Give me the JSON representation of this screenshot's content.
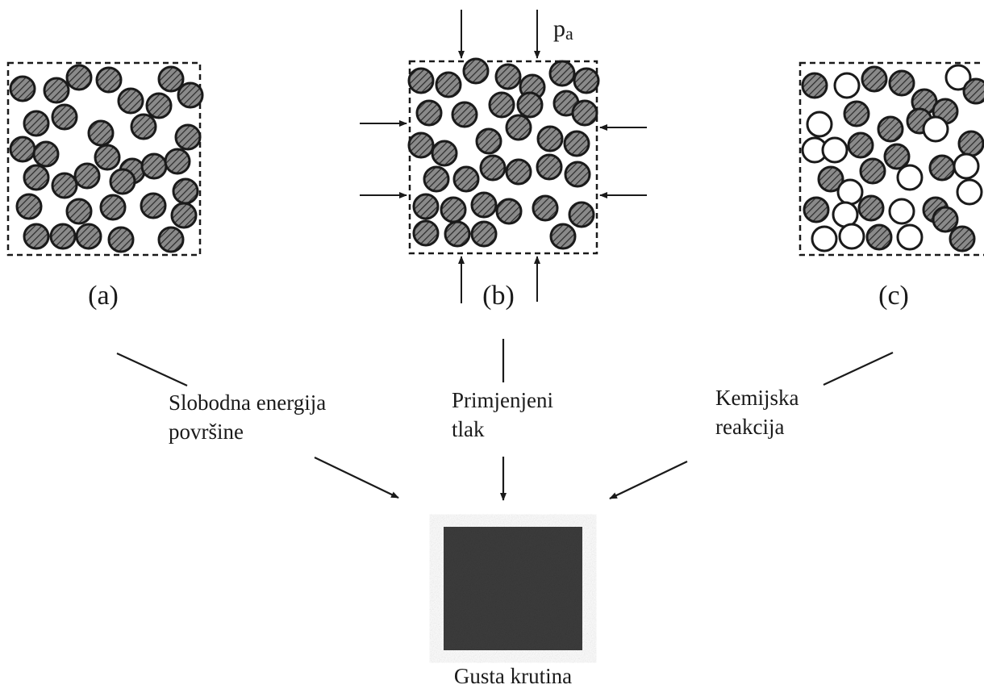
{
  "panels": [
    {
      "id": "a",
      "label": "(a)"
    },
    {
      "id": "b",
      "label": "(b)"
    },
    {
      "id": "c",
      "label": "(c)"
    }
  ],
  "pressure_label": "p",
  "pressure_subscript": "a",
  "mechanisms": {
    "surface_energy": {
      "line1": "Slobodna energija",
      "line2": "površine"
    },
    "applied_pressure": {
      "line1": "Primjenjeni",
      "line2": "tlak"
    },
    "chemical_reaction": {
      "line1": "Kemijska",
      "line2": "reakcija"
    }
  },
  "result_label": "Gusta krutina",
  "colors": {
    "ink": "#1a1a1a",
    "particle_fill": "#808080",
    "dense_solid": "#3c3c3c"
  }
}
